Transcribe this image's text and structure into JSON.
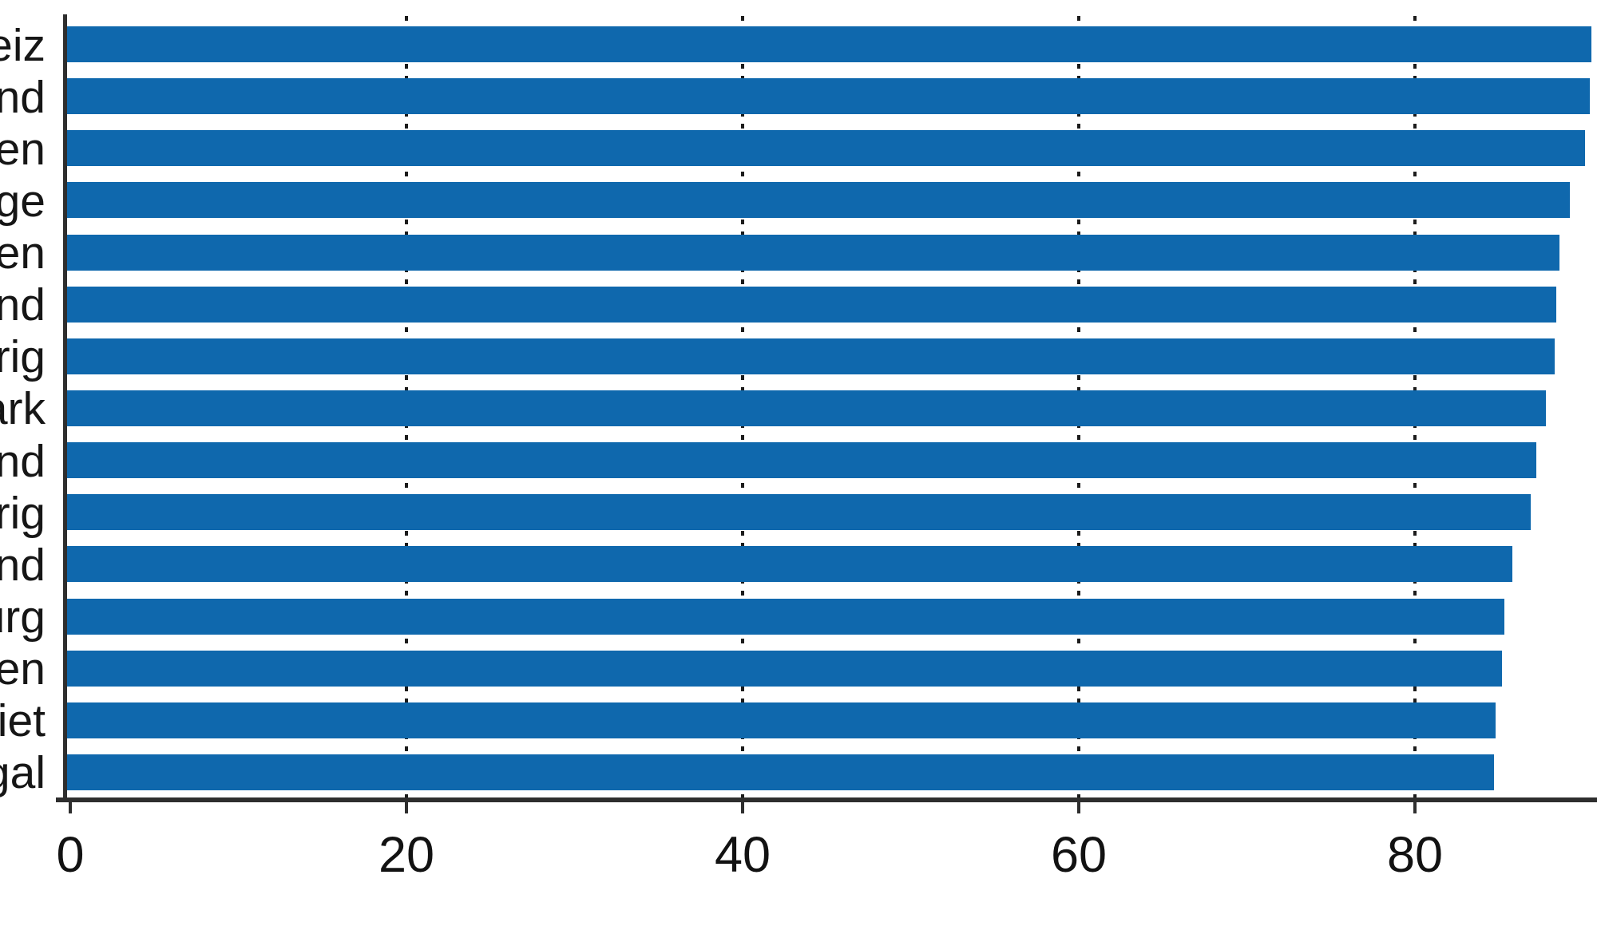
{
  "chart_data": {
    "type": "bar",
    "orientation": "horizontal",
    "title": "",
    "xlabel": "",
    "ylabel": "",
    "categories": [
      "eiz",
      "nd",
      "en",
      "ge",
      "en",
      "nd",
      "rig",
      "ark",
      "nd",
      "rig",
      "nd",
      "urg",
      "en",
      "iet",
      "gal"
    ],
    "values": [
      90.5,
      90.4,
      90.1,
      89.2,
      88.6,
      88.4,
      88.3,
      87.8,
      87.2,
      86.9,
      85.8,
      85.3,
      85.2,
      84.8,
      84.7
    ],
    "xticks": [
      0,
      20,
      40,
      60,
      80
    ],
    "xlim": [
      0,
      90.8
    ],
    "grid": "dotted-vertical-at-xticks",
    "legend": "none",
    "colors": {
      "bar": "#0f68ad",
      "axis": "#2e2e2e",
      "grid": "#1c1c1c",
      "text": "#161616",
      "background": "#ffffff"
    }
  }
}
